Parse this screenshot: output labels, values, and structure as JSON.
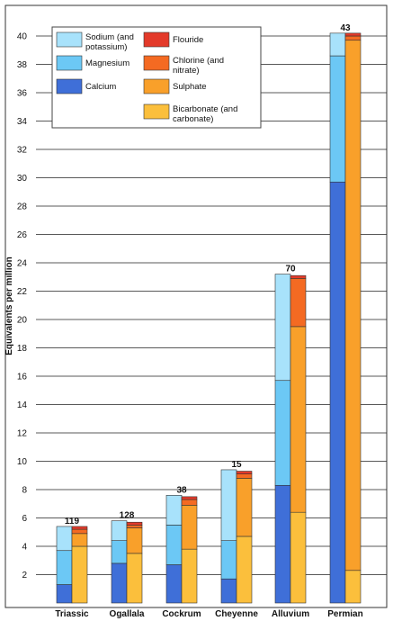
{
  "chart_data": {
    "type": "bar",
    "subtype": "paired stacked bars (cations left, anions right)",
    "ylabel": "Equivalents per million",
    "xlabel": "",
    "ylim": [
      0,
      42
    ],
    "yticks": [
      2,
      4,
      6,
      8,
      10,
      12,
      14,
      16,
      18,
      20,
      22,
      24,
      26,
      28,
      30,
      32,
      34,
      36,
      38,
      40
    ],
    "grid": "horizontal",
    "legend_position": "top-left",
    "categories": [
      "Triassic",
      "Ogallala",
      "Cockrum",
      "Cheyenne",
      "Alluvium",
      "Permian"
    ],
    "sample_counts": [
      "119",
      "128",
      "38",
      "15",
      "70",
      "43"
    ],
    "cation_series": [
      {
        "name": "Calcium",
        "color": "#3f6fd8",
        "values": [
          1.3,
          2.8,
          2.7,
          1.7,
          8.3,
          29.7
        ]
      },
      {
        "name": "Magnesium",
        "color": "#6cc8f5",
        "values": [
          2.4,
          1.6,
          2.8,
          2.7,
          7.4,
          8.9
        ]
      },
      {
        "name": "Sodium (and potassium)",
        "color": "#a8e2fb",
        "values": [
          1.7,
          1.4,
          2.1,
          5.0,
          7.5,
          1.6
        ]
      }
    ],
    "anion_series": [
      {
        "name": "Bicarbonate (and carbonate)",
        "color": "#fbbf3c",
        "values": [
          4.0,
          3.5,
          3.8,
          4.7,
          6.4,
          2.3
        ]
      },
      {
        "name": "Sulphate",
        "color": "#f9a02a",
        "values": [
          0.9,
          1.8,
          3.1,
          4.1,
          13.1,
          37.4
        ]
      },
      {
        "name": "Chlorine (and nitrate)",
        "color": "#f46a22",
        "values": [
          0.3,
          0.2,
          0.4,
          0.3,
          3.4,
          0.3
        ]
      },
      {
        "name": "Flouride",
        "color": "#e33a2a",
        "values": [
          0.2,
          0.2,
          0.2,
          0.2,
          0.2,
          0.2
        ]
      }
    ],
    "legend": [
      {
        "label": "Sodium (and potassium)",
        "color": "#a8e2fb",
        "col": 0,
        "row": 0
      },
      {
        "label": "Magnesium",
        "color": "#6cc8f5",
        "col": 0,
        "row": 1
      },
      {
        "label": "Calcium",
        "color": "#3f6fd8",
        "col": 0,
        "row": 2
      },
      {
        "label": "Flouride",
        "color": "#e33a2a",
        "col": 1,
        "row": 0
      },
      {
        "label": "Chlorine (and nitrate)",
        "color": "#f46a22",
        "col": 1,
        "row": 1
      },
      {
        "label": "Sulphate",
        "color": "#f9a02a",
        "col": 1,
        "row": 2
      },
      {
        "label": "Bicarbonate (and carbonate)",
        "color": "#fbbf3c",
        "col": 1,
        "row": 3
      }
    ]
  }
}
